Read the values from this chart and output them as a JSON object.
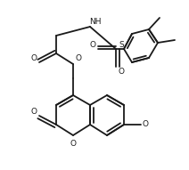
{
  "bg_color": "#ffffff",
  "line_color": "#1a1a1a",
  "lw": 1.3,
  "figsize": [
    2.12,
    1.91
  ],
  "dpi": 100,
  "xlim": [
    0,
    212
  ],
  "ylim": [
    0,
    191
  ]
}
